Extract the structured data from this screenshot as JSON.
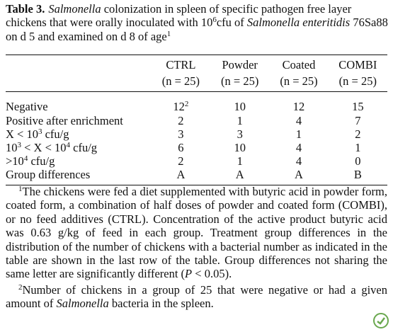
{
  "title": {
    "runs": [
      {
        "text": "Table 3.",
        "style": "bold"
      },
      {
        "text": "Salmonella",
        "style": "italic"
      },
      {
        "text": " colonization in spleen of specific pathogen free layer chickens that were orally inoculated with 10",
        "style": "normal"
      },
      {
        "text": "6",
        "style": "sup"
      },
      {
        "text": "cfu of ",
        "style": "normal"
      },
      {
        "text": "Salmonella enteritidis",
        "style": "italic"
      },
      {
        "text": " 76Sa88 on d 5 and examined on d 8 of age",
        "style": "normal"
      },
      {
        "text": "1",
        "style": "sup"
      }
    ]
  },
  "table": {
    "header": [
      [
        "CTRL",
        "(n = 25)"
      ],
      [
        "Powder",
        "(n = 25)"
      ],
      [
        "Coated",
        "(n = 25)"
      ],
      [
        "COMBI",
        "(n = 25)"
      ]
    ],
    "rows": [
      {
        "label": [
          {
            "text": "Negative",
            "style": "normal"
          }
        ],
        "cells": [
          [
            {
              "text": "12",
              "style": "normal"
            },
            {
              "text": "2",
              "style": "sup"
            }
          ],
          10,
          12,
          15
        ]
      },
      {
        "label": [
          {
            "text": "Positive after enrichment",
            "style": "normal"
          }
        ],
        "cells": [
          2,
          1,
          4,
          7
        ]
      },
      {
        "label": [
          {
            "text": "X < 10",
            "style": "normal"
          },
          {
            "text": "3",
            "style": "sup"
          },
          {
            "text": " cfu/g",
            "style": "normal"
          }
        ],
        "cells": [
          3,
          3,
          1,
          2
        ]
      },
      {
        "label": [
          {
            "text": "10",
            "style": "normal"
          },
          {
            "text": "3",
            "style": "sup"
          },
          {
            "text": " < X < 10",
            "style": "normal"
          },
          {
            "text": "4",
            "style": "sup"
          },
          {
            "text": " cfu/g",
            "style": "normal"
          }
        ],
        "cells": [
          6,
          10,
          4,
          1
        ]
      },
      {
        "label": [
          {
            "text": ">10",
            "style": "normal"
          },
          {
            "text": "4",
            "style": "sup"
          },
          {
            "text": " cfu/g",
            "style": "normal"
          }
        ],
        "cells": [
          2,
          1,
          4,
          0
        ]
      },
      {
        "label": [
          {
            "text": "Group differences",
            "style": "normal"
          }
        ],
        "cells": [
          "A",
          "A",
          "A",
          "B"
        ]
      }
    ]
  },
  "footnotes": [
    [
      {
        "text": "1",
        "style": "sup"
      },
      {
        "text": "The chickens were fed a diet supplemented with butyric acid in powder form, coated form, a combination of half doses of powder and coated form (COMBI), or no feed additives (CTRL). Concentration of the active product butyric acid was 0.63 g/kg of feed in each group. Treatment group differences in the distribution of the number of chickens with a bacterial number as indicated in the table are shown in the last row of the table. Group differences not sharing the same letter are significantly different (",
        "style": "normal"
      },
      {
        "text": "P",
        "style": "italic"
      },
      {
        "text": " < 0.05).",
        "style": "normal"
      }
    ],
    [
      {
        "text": "2",
        "style": "sup"
      },
      {
        "text": "Number of chickens in a group of 25 that were negative or had a given amount of ",
        "style": "normal"
      },
      {
        "text": "Salmonella",
        "style": "italic"
      },
      {
        "text": " bacteria in the spleen.",
        "style": "normal"
      }
    ]
  ]
}
